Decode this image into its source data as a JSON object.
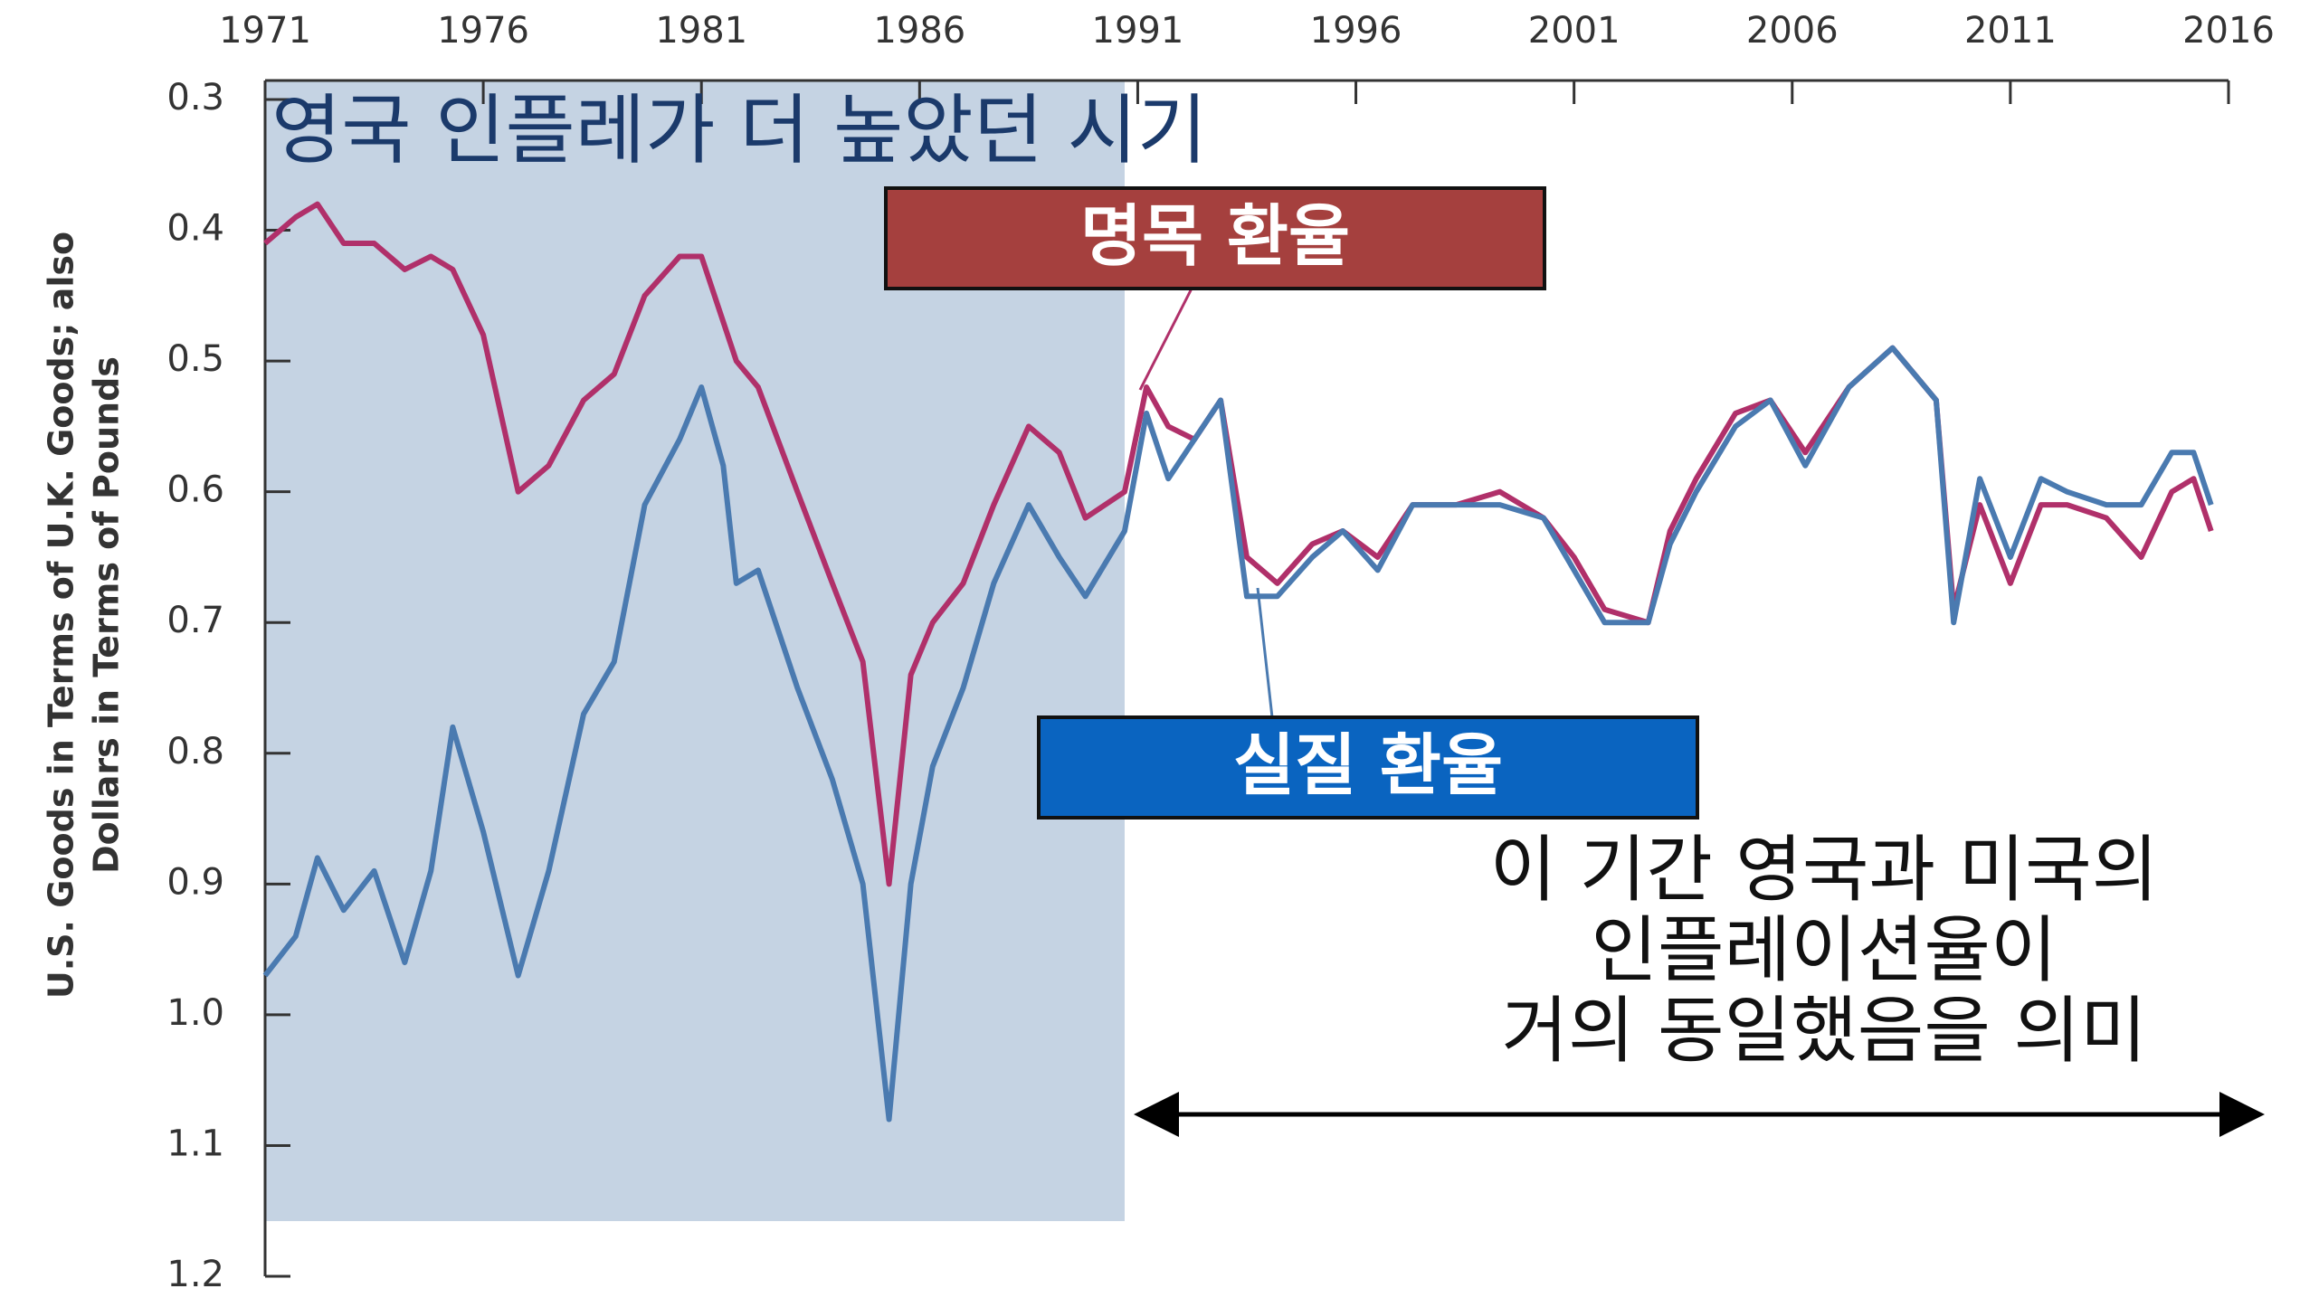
{
  "chart_data": {
    "type": "line",
    "y_axis_label": [
      "U.S. Goods in Terms of U.K. Goods; also",
      "Dollars in Terms of Pounds"
    ],
    "annotations": {
      "region": "영국 인플레가 더 높았던 시기",
      "note": [
        "이 기간 영국과 미국의",
        "인플레이션율이",
        "거의 동일했음을 의미"
      ]
    },
    "x": [
      1971.0,
      1971.7,
      1972.2,
      1972.8,
      1973.5,
      1974.2,
      1974.8,
      1975.3,
      1976.0,
      1976.8,
      1977.5,
      1978.3,
      1979.0,
      1979.7,
      1980.5,
      1981.0,
      1981.5,
      1981.8,
      1982.3,
      1983.2,
      1984.0,
      1984.7,
      1985.3,
      1985.8,
      1986.3,
      1987.0,
      1987.7,
      1988.5,
      1989.2,
      1989.8,
      1990.7,
      1991.2,
      1991.7,
      1992.3,
      1992.9,
      1993.5,
      1994.2,
      1995.0,
      1995.7,
      1996.5,
      1997.3,
      1998.3,
      1999.3,
      2000.3,
      2001.0,
      2001.7,
      2002.7,
      2003.2,
      2003.8,
      2004.7,
      2005.5,
      2006.3,
      2007.3,
      2008.3,
      2009.3,
      2009.7,
      2010.3,
      2011.0,
      2011.7,
      2012.3,
      2013.2,
      2014.0,
      2014.7,
      2015.2,
      2015.6
    ],
    "series": [
      {
        "name": "명목 환율",
        "color": "#b0306a",
        "box_color": "#a5403e",
        "values": [
          0.41,
          0.39,
          0.38,
          0.41,
          0.41,
          0.43,
          0.42,
          0.43,
          0.48,
          0.6,
          0.58,
          0.53,
          0.51,
          0.45,
          0.42,
          0.42,
          0.47,
          0.5,
          0.52,
          0.6,
          0.67,
          0.73,
          0.9,
          0.74,
          0.7,
          0.67,
          0.61,
          0.55,
          0.57,
          0.62,
          0.6,
          0.52,
          0.55,
          0.56,
          0.53,
          0.65,
          0.67,
          0.64,
          0.63,
          0.65,
          0.61,
          0.61,
          0.6,
          0.62,
          0.65,
          0.69,
          0.7,
          0.63,
          0.59,
          0.54,
          0.53,
          0.57,
          0.52,
          0.49,
          0.53,
          0.69,
          0.61,
          0.67,
          0.61,
          0.61,
          0.62,
          0.65,
          0.6,
          0.59,
          0.63
        ]
      },
      {
        "name": "실질 환율",
        "color": "#4a7ab0",
        "box_color": "#0a64c0",
        "values": [
          0.97,
          0.94,
          0.88,
          0.92,
          0.89,
          0.96,
          0.89,
          0.78,
          0.86,
          0.97,
          0.89,
          0.77,
          0.73,
          0.61,
          0.56,
          0.52,
          0.58,
          0.67,
          0.66,
          0.75,
          0.82,
          0.9,
          1.08,
          0.9,
          0.81,
          0.75,
          0.67,
          0.61,
          0.65,
          0.68,
          0.63,
          0.54,
          0.59,
          0.56,
          0.53,
          0.68,
          0.68,
          0.65,
          0.63,
          0.66,
          0.61,
          0.61,
          0.61,
          0.62,
          0.66,
          0.7,
          0.7,
          0.64,
          0.6,
          0.55,
          0.53,
          0.58,
          0.52,
          0.49,
          0.53,
          0.7,
          0.59,
          0.65,
          0.59,
          0.6,
          0.61,
          0.61,
          0.57,
          0.57,
          0.61
        ]
      }
    ],
    "xlim": [
      1971,
      2016
    ],
    "xticks": [
      1971,
      1976,
      1981,
      1986,
      1991,
      1996,
      2001,
      2006,
      2011,
      2016
    ],
    "ylim": [
      1.2,
      0.3
    ],
    "yticks": [
      0.3,
      0.4,
      0.5,
      0.6,
      0.7,
      0.8,
      0.9,
      {
        "value": 1,
        "label": "1.0"
      },
      1.1,
      1.2
    ],
    "shaded_xlim": [
      1971,
      1990.7
    ],
    "shade_color": "#c5d3e3"
  }
}
